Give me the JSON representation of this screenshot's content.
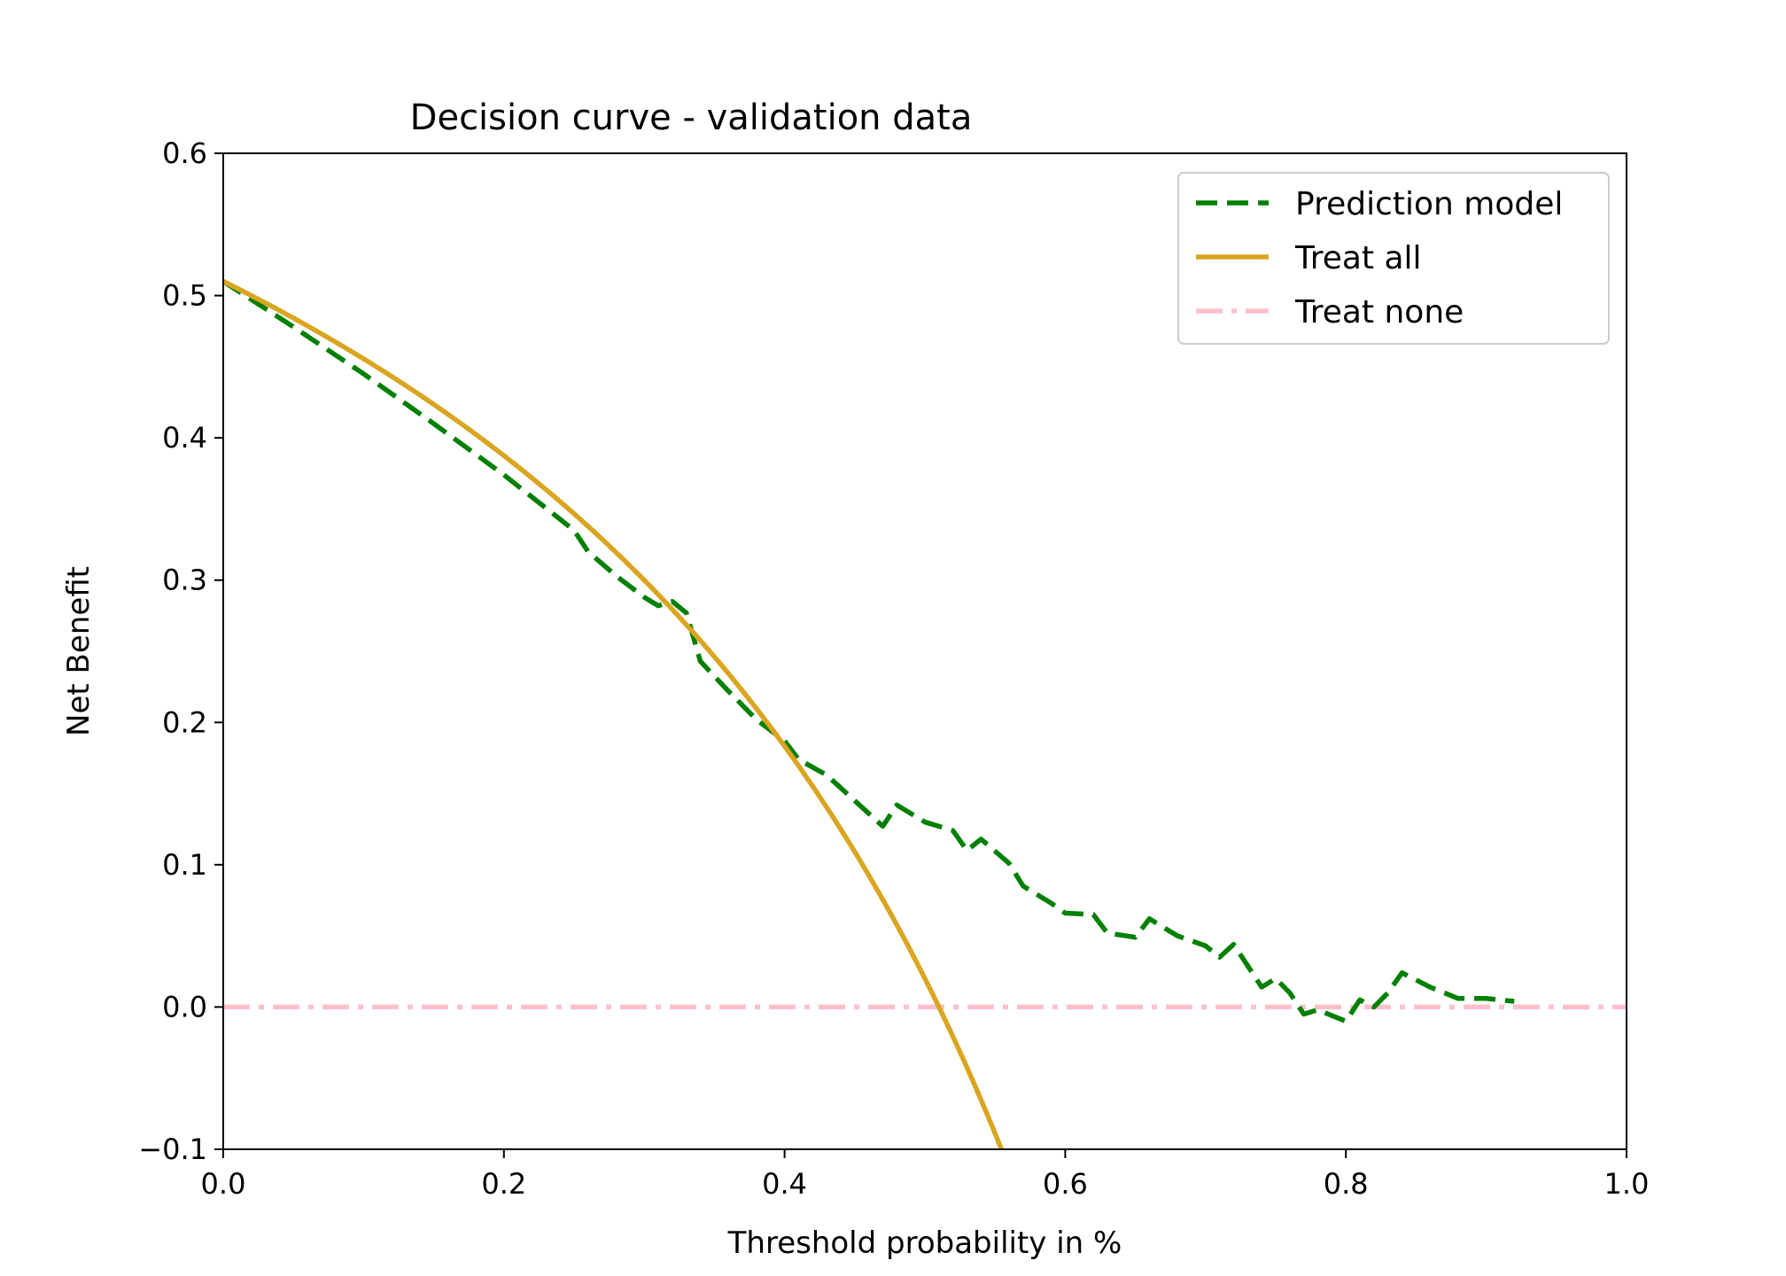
{
  "chart_data": {
    "type": "line",
    "title": "Decision curve - validation data",
    "xlabel": "Threshold probability in %",
    "ylabel": "Net Benefit",
    "xlim": [
      0.0,
      1.0
    ],
    "ylim": [
      -0.1,
      0.6
    ],
    "xticks": [
      "0.0",
      "0.2",
      "0.4",
      "0.6",
      "0.8",
      "1.0"
    ],
    "yticks": [
      "−0.1",
      "0.0",
      "0.1",
      "0.2",
      "0.3",
      "0.4",
      "0.5",
      "0.6"
    ],
    "grid": false,
    "legend_position": "top-right",
    "series": [
      {
        "name": "Prediction model",
        "color": "#008000",
        "style": "dashed",
        "x": [
          0.0,
          0.05,
          0.1,
          0.15,
          0.2,
          0.25,
          0.26,
          0.28,
          0.3,
          0.31,
          0.32,
          0.33,
          0.34,
          0.36,
          0.38,
          0.4,
          0.41,
          0.43,
          0.45,
          0.47,
          0.48,
          0.5,
          0.52,
          0.53,
          0.54,
          0.56,
          0.57,
          0.59,
          0.6,
          0.62,
          0.63,
          0.65,
          0.66,
          0.68,
          0.7,
          0.71,
          0.72,
          0.74,
          0.75,
          0.76,
          0.77,
          0.78,
          0.8,
          0.81,
          0.82,
          0.83,
          0.84,
          0.86,
          0.88,
          0.9,
          0.92
        ],
        "y": [
          0.51,
          0.478,
          0.445,
          0.41,
          0.374,
          0.335,
          0.32,
          0.303,
          0.288,
          0.282,
          0.285,
          0.277,
          0.243,
          0.222,
          0.202,
          0.187,
          0.174,
          0.163,
          0.145,
          0.127,
          0.142,
          0.13,
          0.124,
          0.11,
          0.118,
          0.101,
          0.085,
          0.073,
          0.066,
          0.065,
          0.052,
          0.049,
          0.062,
          0.05,
          0.043,
          0.035,
          0.044,
          0.014,
          0.02,
          0.01,
          -0.005,
          -0.002,
          -0.01,
          0.005,
          0.0,
          0.01,
          0.024,
          0.014,
          0.006,
          0.006,
          0.004
        ]
      },
      {
        "name": "Treat all",
        "color": "#DAA520",
        "style": "solid",
        "prevalence": 0.51,
        "x_max": 0.555
      },
      {
        "name": "Treat none",
        "color": "#FFC0CB",
        "style": "dashdot",
        "y": 0.0
      }
    ]
  }
}
